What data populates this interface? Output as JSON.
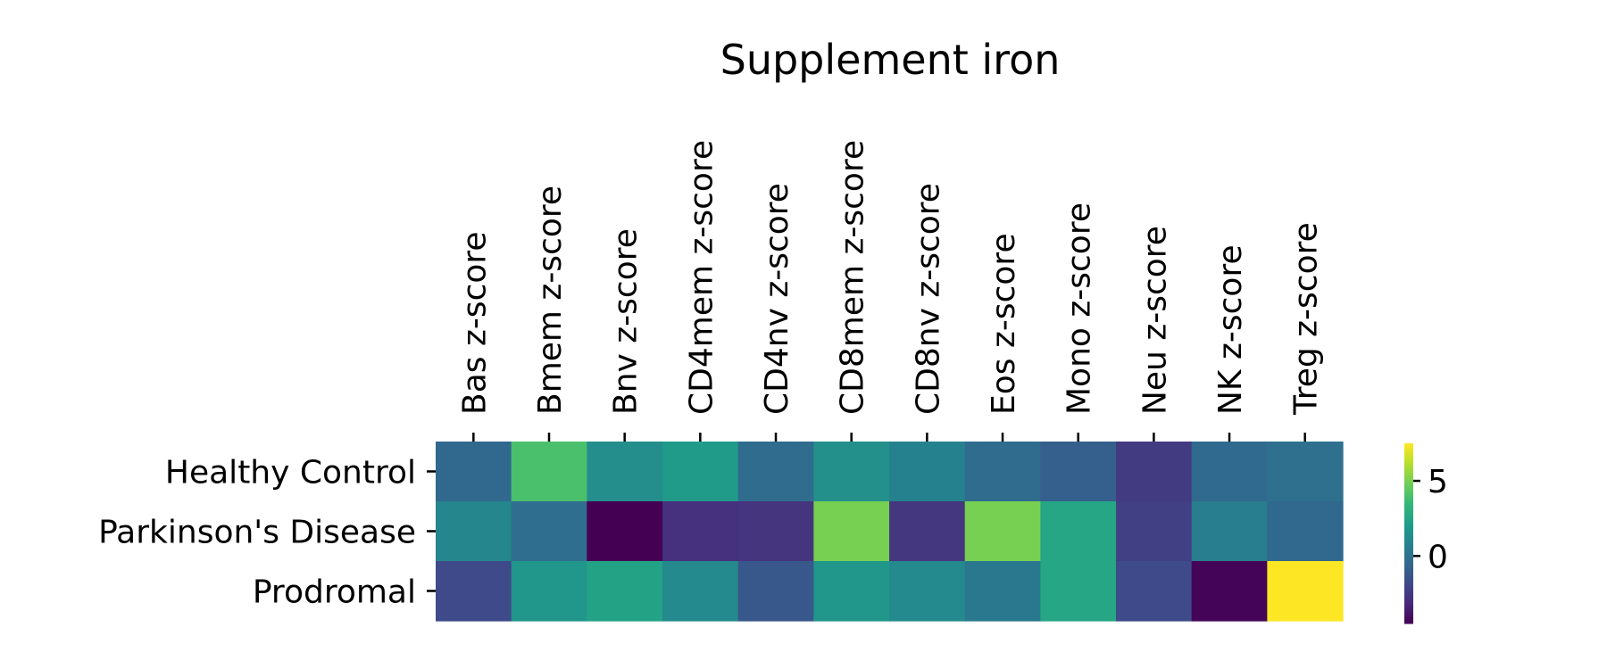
{
  "chart_data": {
    "type": "heatmap",
    "title": "Supplement iron",
    "x_tick_position": "top",
    "categories": [
      "Bas z-score",
      "Bmem z-score",
      "Bnv z-score",
      "CD4mem z-score",
      "CD4nv z-score",
      "CD8mem z-score",
      "CD8nv z-score",
      "Eos z-score",
      "Mono z-score",
      "Neu z-score",
      "NK z-score",
      "Treg z-score"
    ],
    "rows": [
      "Healthy Control",
      "Parkinson's Disease",
      "Prodromal"
    ],
    "values": [
      [
        -0.5,
        4.0,
        1.4,
        2.0,
        -0.3,
        1.5,
        0.8,
        -0.3,
        -0.9,
        -2.4,
        -0.4,
        -0.1
      ],
      [
        1.0,
        -0.2,
        -4.5,
        -2.8,
        -2.7,
        5.0,
        -2.6,
        5.0,
        2.6,
        -2.2,
        0.6,
        -0.5
      ],
      [
        -1.8,
        1.8,
        2.4,
        1.2,
        -1.2,
        1.8,
        1.2,
        0.3,
        2.6,
        -1.8,
        -4.4,
        7.5
      ]
    ],
    "colorscale": "viridis",
    "colorbar": {
      "range": [
        -4.5,
        7.5
      ],
      "ticks": [
        0,
        5
      ],
      "tick_labels": [
        "0",
        "5"
      ]
    }
  }
}
